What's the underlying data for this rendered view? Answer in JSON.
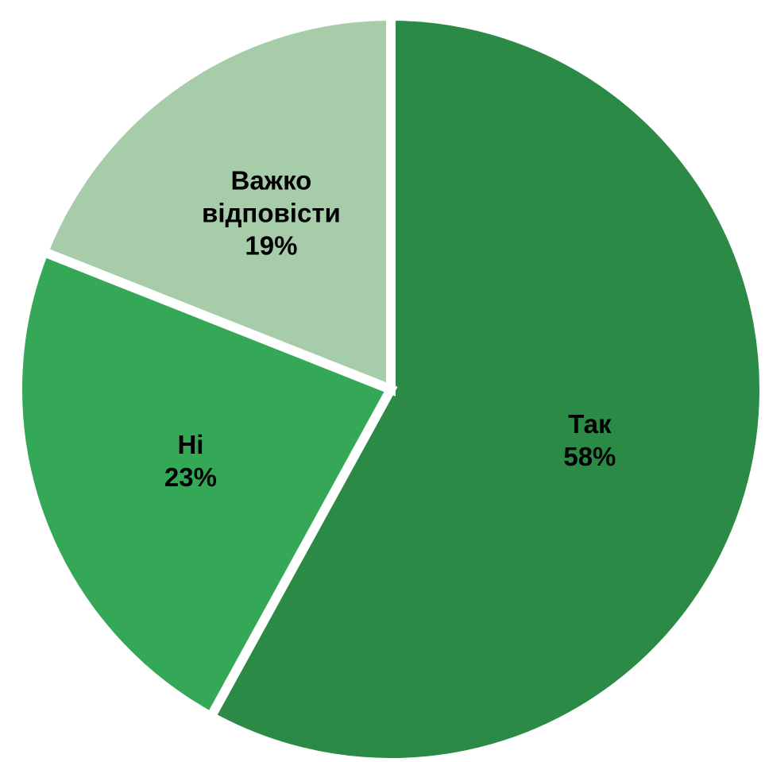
{
  "chart_data": {
    "type": "pie",
    "title": "",
    "start": "top",
    "direction": "clockwise",
    "legend": "none",
    "slices": [
      {
        "category": "Так",
        "value": 58,
        "value_label": "58%",
        "color": "#2b8a45"
      },
      {
        "category": "Ні",
        "value": 23,
        "value_label": "23%",
        "color": "#35a857"
      },
      {
        "category": "Важко відповісти",
        "label_lines": [
          "Важко",
          "відповісти"
        ],
        "value": 19,
        "value_label": "19%",
        "color": "#a6cca9"
      }
    ]
  }
}
